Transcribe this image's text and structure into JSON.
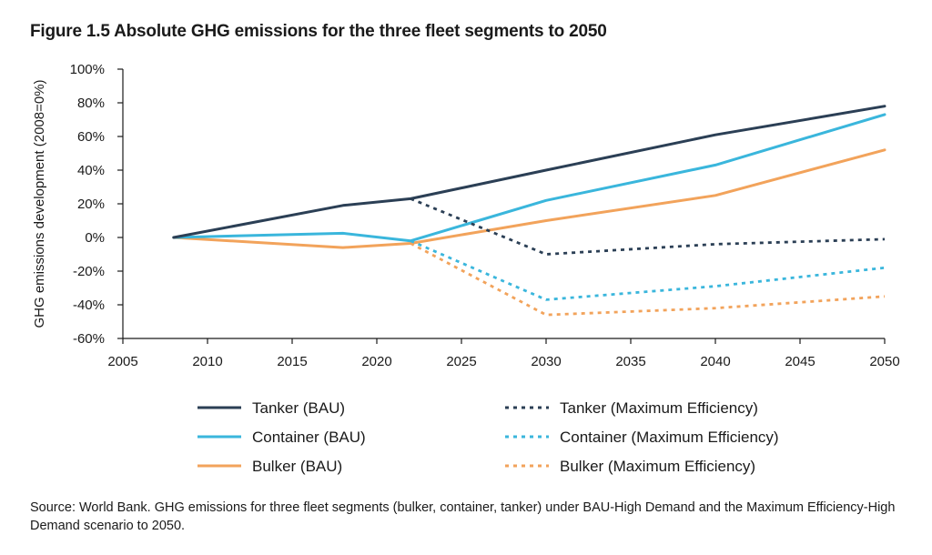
{
  "title": "Figure 1.5 Absolute GHG emissions for the three fleet segments to 2050",
  "source": "Source: World Bank. GHG emissions for three fleet segments (bulker, container, tanker) under BAU-High Demand and the Maximum Efficiency-High Demand scenario to 2050.",
  "colors": {
    "tanker": "#2b3f55",
    "container": "#3ab6dc",
    "bulker": "#f2a35b",
    "axis": "#1a1a1a"
  },
  "chart_data": {
    "type": "line",
    "title": "Figure 1.5 Absolute GHG emissions for the three fleet segments to 2050",
    "xlabel": "",
    "ylabel": "GHG emissions development (2008=0%)",
    "xlim": [
      2005,
      2050
    ],
    "ylim": [
      -60,
      100
    ],
    "xticks": [
      2005,
      2010,
      2015,
      2020,
      2025,
      2030,
      2035,
      2040,
      2045,
      2050
    ],
    "yticks": [
      -60,
      -40,
      -20,
      0,
      20,
      40,
      60,
      80,
      100
    ],
    "ytick_labels": [
      "-60%",
      "-40%",
      "-20%",
      "0%",
      "20%",
      "40%",
      "60%",
      "80%",
      "100%"
    ],
    "grid": false,
    "legend_position": "bottom",
    "series": [
      {
        "name": "Tanker (BAU)",
        "color_key": "tanker",
        "dashed": false,
        "x": [
          2008,
          2018,
          2022,
          2030,
          2040,
          2050
        ],
        "values": [
          0,
          19,
          23,
          40,
          61,
          78
        ]
      },
      {
        "name": "Tanker (Maximum Efficiency)",
        "color_key": "tanker",
        "dashed": true,
        "x": [
          2022,
          2030,
          2040,
          2050
        ],
        "values": [
          23,
          -10,
          -4,
          -1
        ]
      },
      {
        "name": "Container (BAU)",
        "color_key": "container",
        "dashed": false,
        "x": [
          2008,
          2018,
          2022,
          2030,
          2040,
          2050
        ],
        "values": [
          0,
          2.5,
          -2,
          22,
          43,
          73
        ]
      },
      {
        "name": "Container (Maximum Efficiency)",
        "color_key": "container",
        "dashed": true,
        "x": [
          2022,
          2030,
          2040,
          2050
        ],
        "values": [
          -2,
          -37,
          -29,
          -18
        ]
      },
      {
        "name": "Bulker (BAU)",
        "color_key": "bulker",
        "dashed": false,
        "x": [
          2008,
          2018,
          2022,
          2030,
          2040,
          2050
        ],
        "values": [
          0,
          -6,
          -3.5,
          10,
          25,
          52
        ]
      },
      {
        "name": "Bulker (Maximum Efficiency)",
        "color_key": "bulker",
        "dashed": true,
        "x": [
          2022,
          2030,
          2040,
          2050
        ],
        "values": [
          -3.5,
          -46,
          -42,
          -35
        ]
      }
    ]
  }
}
